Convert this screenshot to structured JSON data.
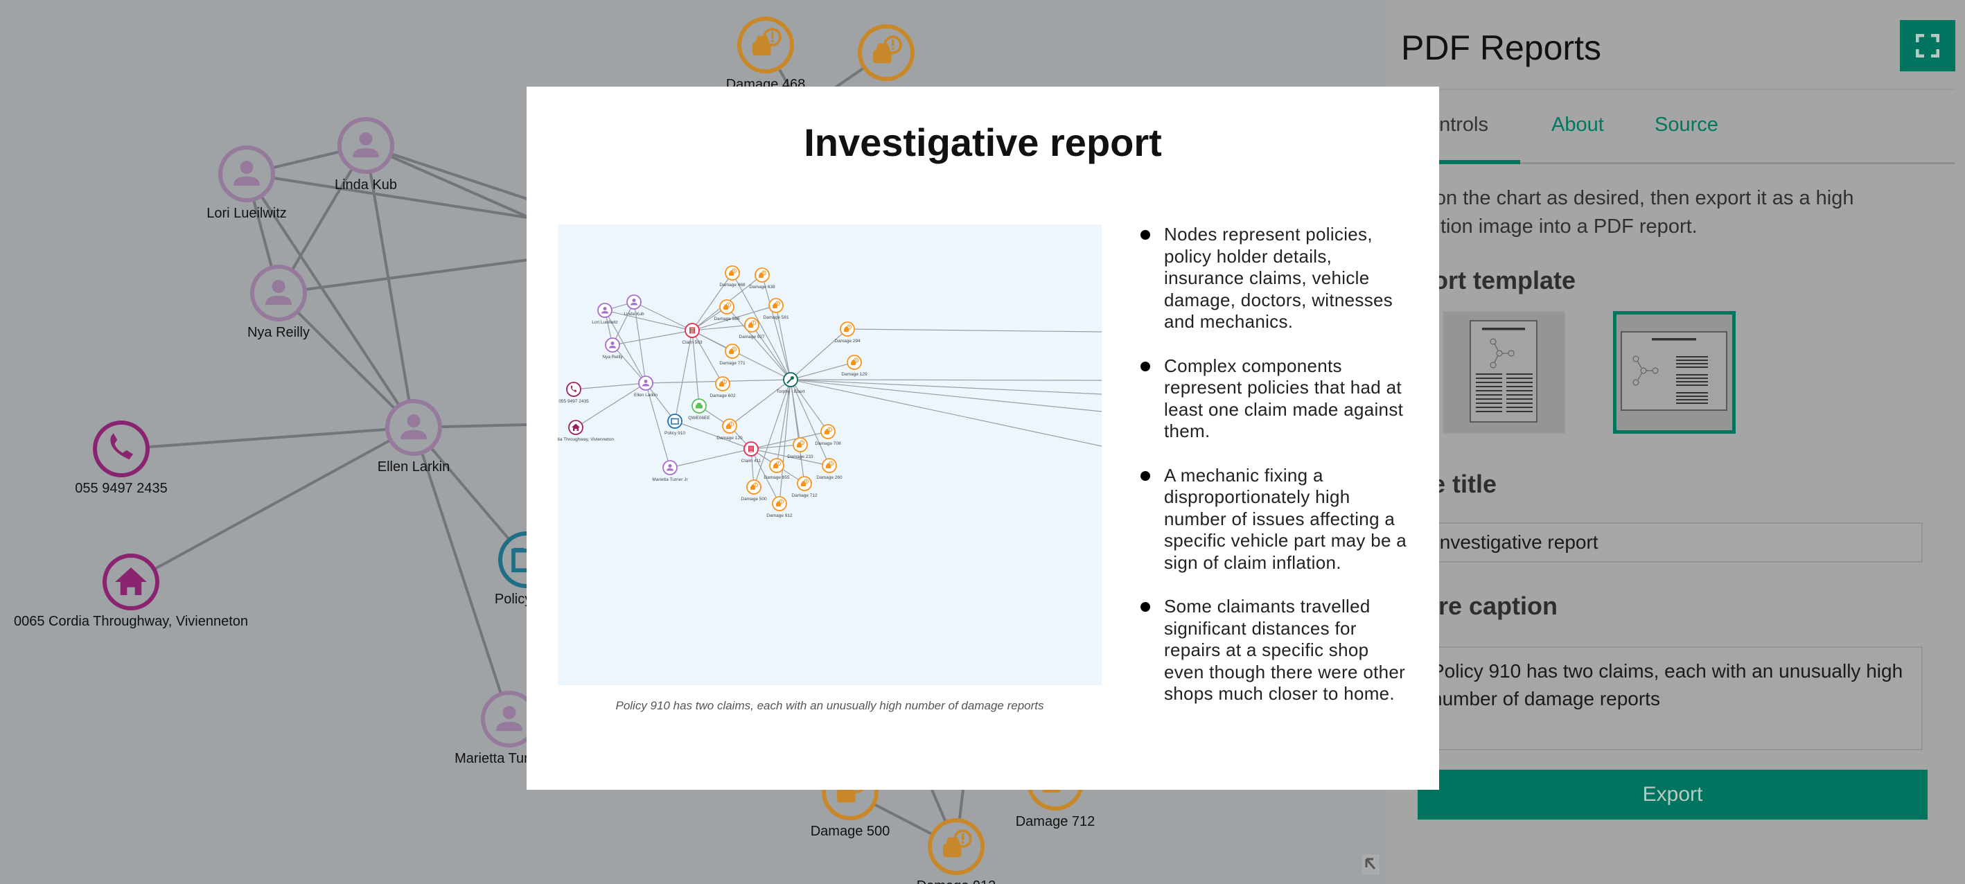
{
  "background_graph": {
    "nodes": [
      {
        "label": "Lori Lueilwitz",
        "type": "person"
      },
      {
        "label": "Linda Kub",
        "type": "person"
      },
      {
        "label": "Nya Reilly",
        "type": "person"
      },
      {
        "label": "Ellen Larkin",
        "type": "person"
      },
      {
        "label": "055 9497 2435",
        "type": "phone"
      },
      {
        "label": "0065 Cordia Throughway, Vivienneton",
        "type": "address"
      },
      {
        "label": "Policy 910",
        "type": "policy"
      },
      {
        "label": "Marietta Turner Jr",
        "type": "person"
      },
      {
        "label": "Damage 468",
        "type": "damage"
      },
      {
        "label": "Damage 638",
        "type": "damage"
      },
      {
        "label": "Damage 500",
        "type": "damage"
      },
      {
        "label": "Damage 712",
        "type": "damage"
      },
      {
        "label": "Damage 912",
        "type": "damage"
      }
    ]
  },
  "panel": {
    "title": "PDF Reports",
    "fullscreen_icon": "expand-icon",
    "tabs": [
      {
        "label": "Controls",
        "active": true
      },
      {
        "label": "About"
      },
      {
        "label": "Source"
      }
    ],
    "description": "Position the chart as desired, then export it as a high resolution image into a PDF report.",
    "report_template_heading": "Report template",
    "templates": [
      {
        "name": "portrait",
        "selected": false
      },
      {
        "name": "landscape",
        "selected": true
      }
    ],
    "page_title_heading": "Page title",
    "page_title_value": "Investigative report",
    "figure_caption_heading": "Figure caption",
    "figure_caption_value": "Policy 910 has two claims, each with an unusually high number of damage reports",
    "export_label": "Export",
    "accent_color": "#00745f"
  },
  "report": {
    "title": "Investigative report",
    "caption": "Policy 910 has two claims, each with an unusually high number of damage reports",
    "bullets": [
      "Nodes represent policies, policy holder details, insurance claims, vehicle damage, doctors, witnesses and mechanics.",
      "Complex components represent policies that had at least one claim made against them.",
      "A mechanic fixing a disproportionately high number of issues affecting a specific vehicle part may be a sign of claim inflation.",
      "Some claimants travelled significant distances for repairs at a specific shop even though there were other shops much closer to home."
    ],
    "graph": {
      "nodes": [
        {
          "label": "Lori Lueilwitz",
          "type": "person"
        },
        {
          "label": "Linda Kub",
          "type": "person"
        },
        {
          "label": "Nya Reilly",
          "type": "person"
        },
        {
          "label": "Ellen Larkin",
          "type": "person"
        },
        {
          "label": "055 9497 2435",
          "type": "phone"
        },
        {
          "label": "0065 Cordia Throughway, Vivienneton",
          "type": "address"
        },
        {
          "label": "Policy 910",
          "type": "policy"
        },
        {
          "label": "Marietta Turner Jr",
          "type": "person"
        },
        {
          "label": "QWE06EE",
          "type": "vehicle"
        },
        {
          "label": "Claim 503",
          "type": "claim"
        },
        {
          "label": "Claim 411",
          "type": "claim"
        },
        {
          "label": "Torphy - Ebert",
          "type": "mechanic"
        },
        {
          "label": "Damage 468",
          "type": "damage"
        },
        {
          "label": "Damage 638",
          "type": "damage"
        },
        {
          "label": "Damage 586",
          "type": "damage"
        },
        {
          "label": "Damage 581",
          "type": "damage"
        },
        {
          "label": "Damage 927",
          "type": "damage"
        },
        {
          "label": "Damage 771",
          "type": "damage"
        },
        {
          "label": "Damage 602",
          "type": "damage"
        },
        {
          "label": "Damage 294",
          "type": "damage"
        },
        {
          "label": "Damage 129",
          "type": "damage"
        },
        {
          "label": "Damage 120",
          "type": "damage"
        },
        {
          "label": "Damage 708",
          "type": "damage"
        },
        {
          "label": "Damage 233",
          "type": "damage"
        },
        {
          "label": "Damage 855",
          "type": "damage"
        },
        {
          "label": "Damage 260",
          "type": "damage"
        },
        {
          "label": "Damage 712",
          "type": "damage"
        },
        {
          "label": "Damage 500",
          "type": "damage"
        },
        {
          "label": "Damage 912",
          "type": "damage"
        }
      ],
      "edges": [
        [
          "Lori Lueilwitz",
          "Linda Kub"
        ],
        [
          "Lori Lueilwitz",
          "Claim 503"
        ],
        [
          "Linda Kub",
          "Claim 503"
        ],
        [
          "Lori Lueilwitz",
          "Nya Reilly"
        ],
        [
          "Linda Kub",
          "Nya Reilly"
        ],
        [
          "Lori Lueilwitz",
          "Ellen Larkin"
        ],
        [
          "Linda Kub",
          "Ellen Larkin"
        ],
        [
          "Nya Reilly",
          "Ellen Larkin"
        ],
        [
          "Nya Reilly",
          "Claim 503"
        ],
        [
          "Ellen Larkin",
          "055 9497 2435"
        ],
        [
          "Ellen Larkin",
          "0065 Cordia Throughway, Vivienneton"
        ],
        [
          "Ellen Larkin",
          "Policy 910"
        ],
        [
          "Ellen Larkin",
          "Marietta Turner Jr"
        ],
        [
          "Ellen Larkin",
          "Torphy - Ebert"
        ],
        [
          "Policy 910",
          "Claim 503"
        ],
        [
          "Policy 910",
          "Claim 411"
        ],
        [
          "Marietta Turner Jr",
          "Claim 411"
        ],
        [
          "Claim 503",
          "QWE06EE"
        ],
        [
          "QWE06EE",
          "Damage 120"
        ],
        [
          "Claim 503",
          "Damage 468"
        ],
        [
          "Claim 503",
          "Damage 638"
        ],
        [
          "Claim 503",
          "Damage 586"
        ],
        [
          "Claim 503",
          "Damage 581"
        ],
        [
          "Claim 503",
          "Damage 927"
        ],
        [
          "Claim 503",
          "Damage 771"
        ],
        [
          "Claim 503",
          "Damage 602"
        ],
        [
          "Claim 503",
          "Torphy - Ebert"
        ],
        [
          "Torphy - Ebert",
          "Damage 468"
        ],
        [
          "Torphy - Ebert",
          "Damage 581"
        ],
        [
          "Torphy - Ebert",
          "Damage 586"
        ],
        [
          "Torphy - Ebert",
          "Damage 927"
        ],
        [
          "Torphy - Ebert",
          "Damage 294"
        ],
        [
          "Torphy - Ebert",
          "Damage 129"
        ],
        [
          "Torphy - Ebert",
          "Damage 120"
        ],
        [
          "Torphy - Ebert",
          "Damage 708"
        ],
        [
          "Torphy - Ebert",
          "Damage 233"
        ],
        [
          "Torphy - Ebert",
          "Damage 855"
        ],
        [
          "Torphy - Ebert",
          "Damage 260"
        ],
        [
          "Torphy - Ebert",
          "Damage 712"
        ],
        [
          "Torphy - Ebert",
          "Damage 500"
        ],
        [
          "Torphy - Ebert",
          "Damage 912"
        ],
        [
          "Torphy - Ebert",
          "Damage 638"
        ],
        [
          "Claim 411",
          "Damage 120"
        ],
        [
          "Claim 411",
          "Damage 708"
        ],
        [
          "Claim 411",
          "Damage 233"
        ],
        [
          "Claim 411",
          "Damage 855"
        ],
        [
          "Claim 411",
          "Damage 260"
        ],
        [
          "Claim 411",
          "Damage 712"
        ],
        [
          "Claim 411",
          "Damage 500"
        ],
        [
          "Claim 411",
          "Damage 912"
        ]
      ]
    }
  },
  "colors": {
    "person": "#a66fcc",
    "phone": "#9c2064",
    "address": "#9c2064",
    "policy": "#1f6fb5",
    "vehicle": "#5cc05a",
    "claim": "#e8294a",
    "mechanic": "#0b6b5a",
    "damage": "#f7941d",
    "bg_person": "#957a9c",
    "bg_phone": "#8a2470",
    "bg_address": "#8a2470",
    "bg_policy": "#1e6f86",
    "bg_damage": "#c8882a"
  }
}
